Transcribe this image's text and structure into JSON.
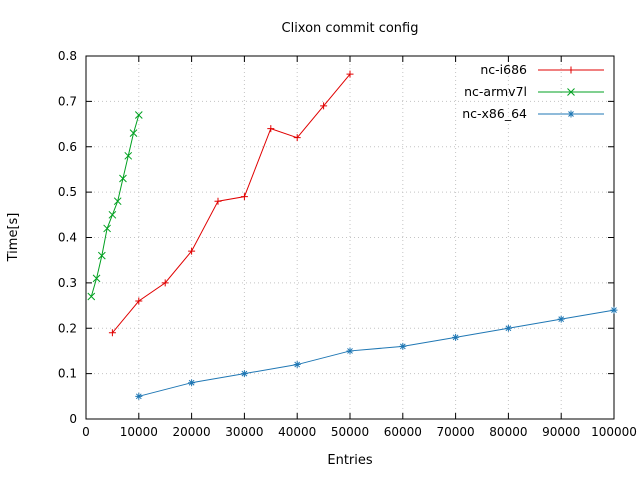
{
  "chart_data": {
    "type": "line",
    "title": "Clixon commit config",
    "xlabel": "Entries",
    "ylabel": "Time[s]",
    "xlim": [
      0,
      100000
    ],
    "ylim": [
      0,
      0.8
    ],
    "xticks": [
      0,
      10000,
      20000,
      30000,
      40000,
      50000,
      60000,
      70000,
      80000,
      90000,
      100000
    ],
    "yticks": [
      0,
      0.1,
      0.2,
      0.3,
      0.4,
      0.5,
      0.6,
      0.7,
      0.8
    ],
    "grid": true,
    "legend_position": "top-right-inside",
    "background_color": "#ffffff",
    "grid_color": "#c4c4c4",
    "series": [
      {
        "name": "nc-i686",
        "color": "#e00000",
        "marker": "plus",
        "x": [
          5000,
          10000,
          15000,
          20000,
          25000,
          30000,
          35000,
          40000,
          45000,
          50000
        ],
        "y": [
          0.19,
          0.26,
          0.3,
          0.37,
          0.48,
          0.49,
          0.64,
          0.62,
          0.69,
          0.76
        ]
      },
      {
        "name": "nc-armv7l",
        "color": "#00a020",
        "marker": "cross",
        "x": [
          1000,
          2000,
          3000,
          4000,
          5000,
          6000,
          7000,
          8000,
          9000,
          10000
        ],
        "y": [
          0.27,
          0.31,
          0.36,
          0.42,
          0.45,
          0.48,
          0.53,
          0.58,
          0.63,
          0.67
        ]
      },
      {
        "name": "nc-x86_64",
        "color": "#1f77b4",
        "marker": "asterisk",
        "x": [
          10000,
          20000,
          30000,
          40000,
          50000,
          60000,
          70000,
          80000,
          90000,
          100000
        ],
        "y": [
          0.05,
          0.08,
          0.1,
          0.12,
          0.15,
          0.16,
          0.18,
          0.2,
          0.22,
          0.24
        ]
      }
    ]
  }
}
